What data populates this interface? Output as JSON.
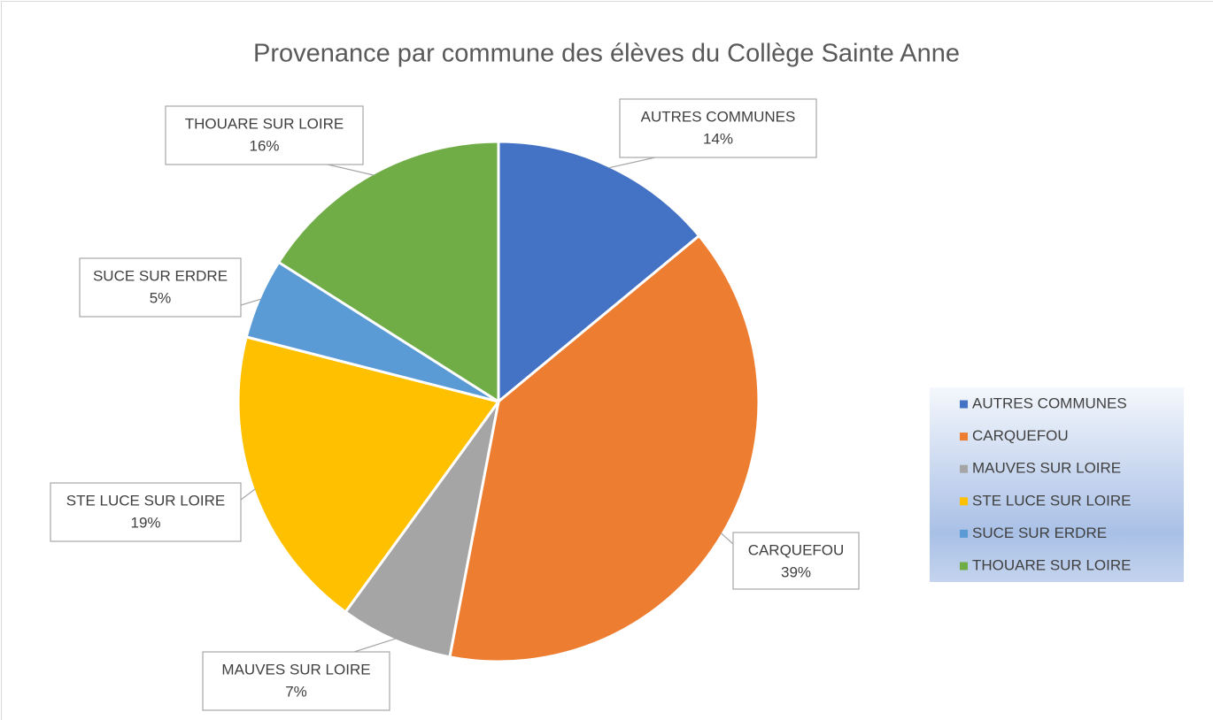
{
  "chart_data": {
    "type": "pie",
    "title": "Provenance par commune des élèves du Collège Sainte Anne",
    "categories": [
      "AUTRES COMMUNES",
      "CARQUEFOU",
      "MAUVES SUR LOIRE",
      "STE LUCE SUR LOIRE",
      "SUCE SUR ERDRE",
      "THOUARE SUR LOIRE"
    ],
    "values": [
      14,
      39,
      7,
      19,
      5,
      16
    ],
    "value_labels": [
      "14%",
      "39%",
      "7%",
      "19%",
      "5%",
      "16%"
    ],
    "colors": [
      "#4472c4",
      "#ed7d31",
      "#a5a5a5",
      "#ffc000",
      "#5b9bd5",
      "#70ad47"
    ],
    "legend": "right"
  }
}
